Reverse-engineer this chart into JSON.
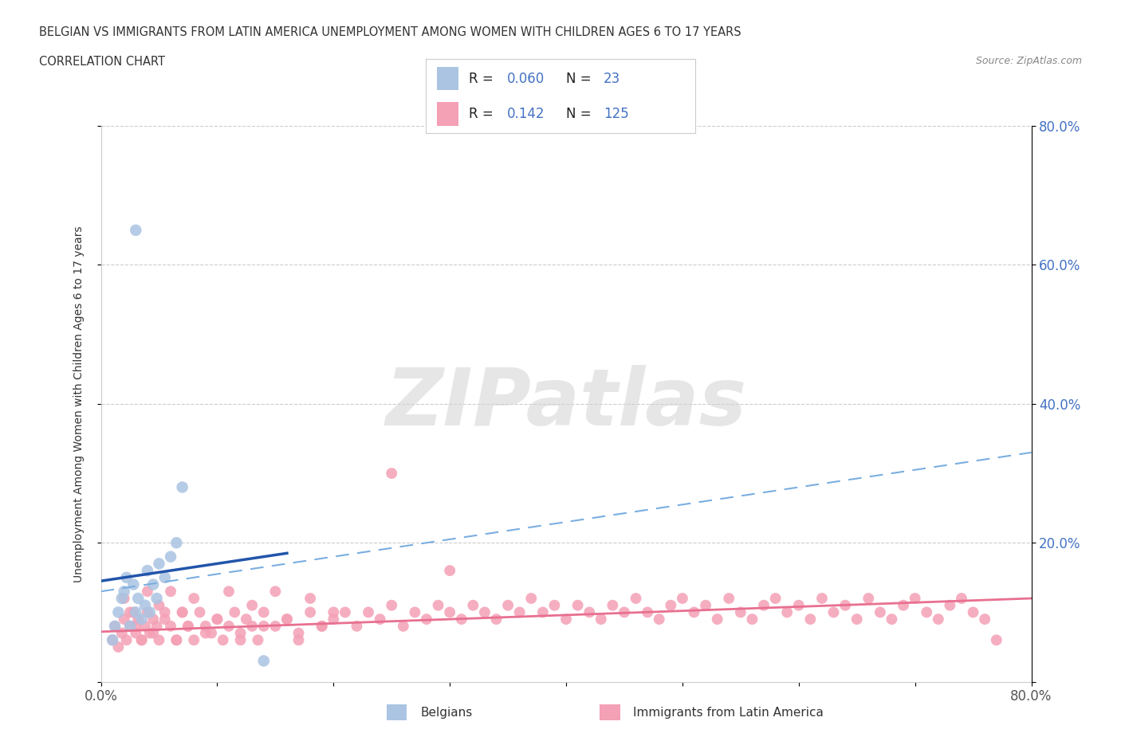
{
  "title_line1": "BELGIAN VS IMMIGRANTS FROM LATIN AMERICA UNEMPLOYMENT AMONG WOMEN WITH CHILDREN AGES 6 TO 17 YEARS",
  "title_line2": "CORRELATION CHART",
  "source_text": "Source: ZipAtlas.com",
  "ylabel": "Unemployment Among Women with Children Ages 6 to 17 years",
  "xlim": [
    0.0,
    0.8
  ],
  "ylim": [
    0.0,
    0.8
  ],
  "watermark_text": "ZIPatlas",
  "belgian_R": "0.060",
  "belgian_N": "23",
  "latin_R": "0.142",
  "latin_N": "125",
  "belgian_color": "#aac4e2",
  "latin_color": "#f4a0b5",
  "belgian_line_color": "#2255aa",
  "latin_line_color": "#e87090",
  "dashed_line_color": "#7aaee0",
  "belgian_x": [
    0.01,
    0.012,
    0.015,
    0.018,
    0.02,
    0.022,
    0.025,
    0.028,
    0.03,
    0.032,
    0.035,
    0.038,
    0.04,
    0.042,
    0.045,
    0.048,
    0.05,
    0.055,
    0.06,
    0.065,
    0.07,
    0.03,
    0.14
  ],
  "belgian_y": [
    0.06,
    0.08,
    0.1,
    0.12,
    0.13,
    0.15,
    0.08,
    0.14,
    0.1,
    0.12,
    0.09,
    0.11,
    0.16,
    0.1,
    0.14,
    0.12,
    0.17,
    0.15,
    0.18,
    0.2,
    0.28,
    0.65,
    0.03
  ],
  "latin_x": [
    0.01,
    0.012,
    0.015,
    0.018,
    0.02,
    0.022,
    0.025,
    0.028,
    0.03,
    0.032,
    0.035,
    0.038,
    0.04,
    0.042,
    0.045,
    0.048,
    0.05,
    0.055,
    0.06,
    0.065,
    0.07,
    0.075,
    0.08,
    0.085,
    0.09,
    0.095,
    0.1,
    0.105,
    0.11,
    0.115,
    0.12,
    0.125,
    0.13,
    0.135,
    0.14,
    0.15,
    0.16,
    0.17,
    0.18,
    0.19,
    0.2,
    0.21,
    0.22,
    0.23,
    0.24,
    0.25,
    0.26,
    0.27,
    0.28,
    0.29,
    0.3,
    0.31,
    0.32,
    0.33,
    0.34,
    0.35,
    0.36,
    0.37,
    0.38,
    0.39,
    0.4,
    0.41,
    0.42,
    0.43,
    0.44,
    0.45,
    0.46,
    0.47,
    0.48,
    0.49,
    0.5,
    0.51,
    0.52,
    0.53,
    0.54,
    0.55,
    0.56,
    0.57,
    0.58,
    0.59,
    0.6,
    0.61,
    0.62,
    0.63,
    0.64,
    0.65,
    0.66,
    0.67,
    0.68,
    0.69,
    0.7,
    0.71,
    0.72,
    0.73,
    0.74,
    0.75,
    0.76,
    0.77,
    0.02,
    0.025,
    0.03,
    0.035,
    0.04,
    0.045,
    0.05,
    0.055,
    0.06,
    0.065,
    0.07,
    0.075,
    0.08,
    0.09,
    0.1,
    0.11,
    0.12,
    0.13,
    0.14,
    0.15,
    0.16,
    0.17,
    0.18,
    0.19,
    0.2,
    0.25,
    0.3
  ],
  "latin_y": [
    0.06,
    0.08,
    0.05,
    0.07,
    0.09,
    0.06,
    0.08,
    0.1,
    0.07,
    0.09,
    0.06,
    0.08,
    0.1,
    0.07,
    0.09,
    0.08,
    0.06,
    0.1,
    0.08,
    0.06,
    0.1,
    0.08,
    0.06,
    0.1,
    0.08,
    0.07,
    0.09,
    0.06,
    0.08,
    0.1,
    0.07,
    0.09,
    0.08,
    0.06,
    0.1,
    0.08,
    0.09,
    0.07,
    0.1,
    0.08,
    0.09,
    0.1,
    0.08,
    0.1,
    0.09,
    0.11,
    0.08,
    0.1,
    0.09,
    0.11,
    0.1,
    0.09,
    0.11,
    0.1,
    0.09,
    0.11,
    0.1,
    0.12,
    0.1,
    0.11,
    0.09,
    0.11,
    0.1,
    0.09,
    0.11,
    0.1,
    0.12,
    0.1,
    0.09,
    0.11,
    0.12,
    0.1,
    0.11,
    0.09,
    0.12,
    0.1,
    0.09,
    0.11,
    0.12,
    0.1,
    0.11,
    0.09,
    0.12,
    0.1,
    0.11,
    0.09,
    0.12,
    0.1,
    0.09,
    0.11,
    0.12,
    0.1,
    0.09,
    0.11,
    0.12,
    0.1,
    0.09,
    0.06,
    0.12,
    0.1,
    0.08,
    0.06,
    0.13,
    0.07,
    0.11,
    0.09,
    0.13,
    0.06,
    0.1,
    0.08,
    0.12,
    0.07,
    0.09,
    0.13,
    0.06,
    0.11,
    0.08,
    0.13,
    0.09,
    0.06,
    0.12,
    0.08,
    0.1,
    0.3,
    0.16
  ],
  "belgian_line_x0": 0.0,
  "belgian_line_y0": 0.145,
  "belgian_line_x1": 0.16,
  "belgian_line_y1": 0.185,
  "latin_line_x0": 0.0,
  "latin_line_y0": 0.072,
  "latin_line_x1": 0.8,
  "latin_line_y1": 0.12,
  "dashed_line_x0": 0.0,
  "dashed_line_y0": 0.13,
  "dashed_line_x1": 0.8,
  "dashed_line_y1": 0.33
}
